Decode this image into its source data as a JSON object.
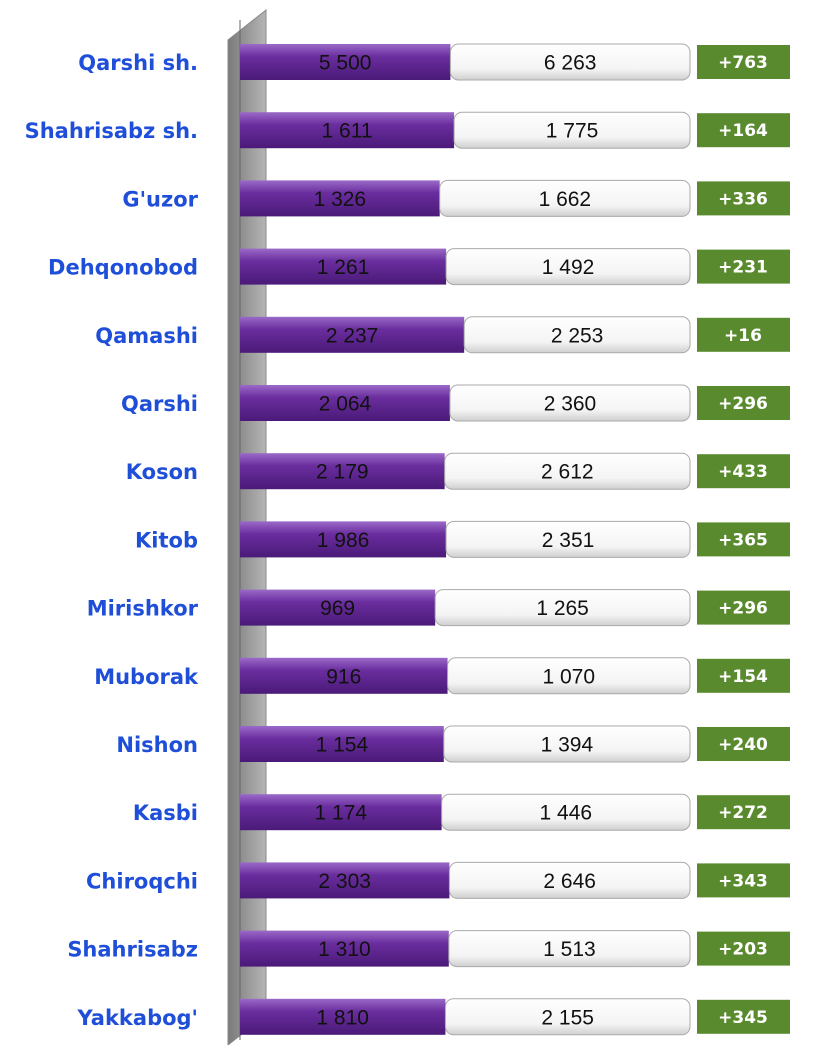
{
  "chart_data": {
    "type": "bar",
    "stacked": true,
    "percent": true,
    "orientation": "horizontal",
    "categories": [
      "Qarshi sh.",
      "Shahrisabz sh.",
      "G'uzor",
      "Dehqonobod",
      "Qamashi",
      "Qarshi",
      "Koson",
      "Kitob",
      "Mirishkor",
      "Muborak",
      "Nishon",
      "Kasbi",
      "Chiroqchi",
      "Shahrisabz",
      "Yakkabog'"
    ],
    "series": [
      {
        "color": "#6a2d9e",
        "values": [
          5500,
          1611,
          1326,
          1261,
          2237,
          2064,
          2179,
          1986,
          969,
          916,
          1154,
          1174,
          2303,
          1310,
          1810
        ],
        "value_labels": [
          "5 500",
          "1 611",
          "1 326",
          "1 261",
          "2 237",
          "2 064",
          "2 179",
          "1 986",
          "969",
          "916",
          "1 154",
          "1 174",
          "2 303",
          "1 310",
          "1 810"
        ]
      },
      {
        "color": "#ffffff",
        "values": [
          6263,
          1775,
          1662,
          1492,
          2253,
          2360,
          2612,
          2351,
          1265,
          1070,
          1394,
          1446,
          2646,
          1513,
          2155
        ],
        "value_labels": [
          "6 263",
          "1 775",
          "1 662",
          "1 492",
          "2 253",
          "2 360",
          "2 612",
          "2 351",
          "1 265",
          "1 070",
          "1 394",
          "1 446",
          "2 646",
          "1 513",
          "2 155"
        ]
      }
    ],
    "differences": {
      "color": "#5a8a2e",
      "values": [
        763,
        164,
        336,
        231,
        16,
        296,
        433,
        365,
        296,
        154,
        240,
        272,
        343,
        203,
        345
      ],
      "value_labels": [
        "+763",
        "+164",
        "+336",
        "+231",
        "+16",
        "+296",
        "+433",
        "+365",
        "+296",
        "+154",
        "+240",
        "+272",
        "+343",
        "+203",
        "+345"
      ]
    }
  }
}
